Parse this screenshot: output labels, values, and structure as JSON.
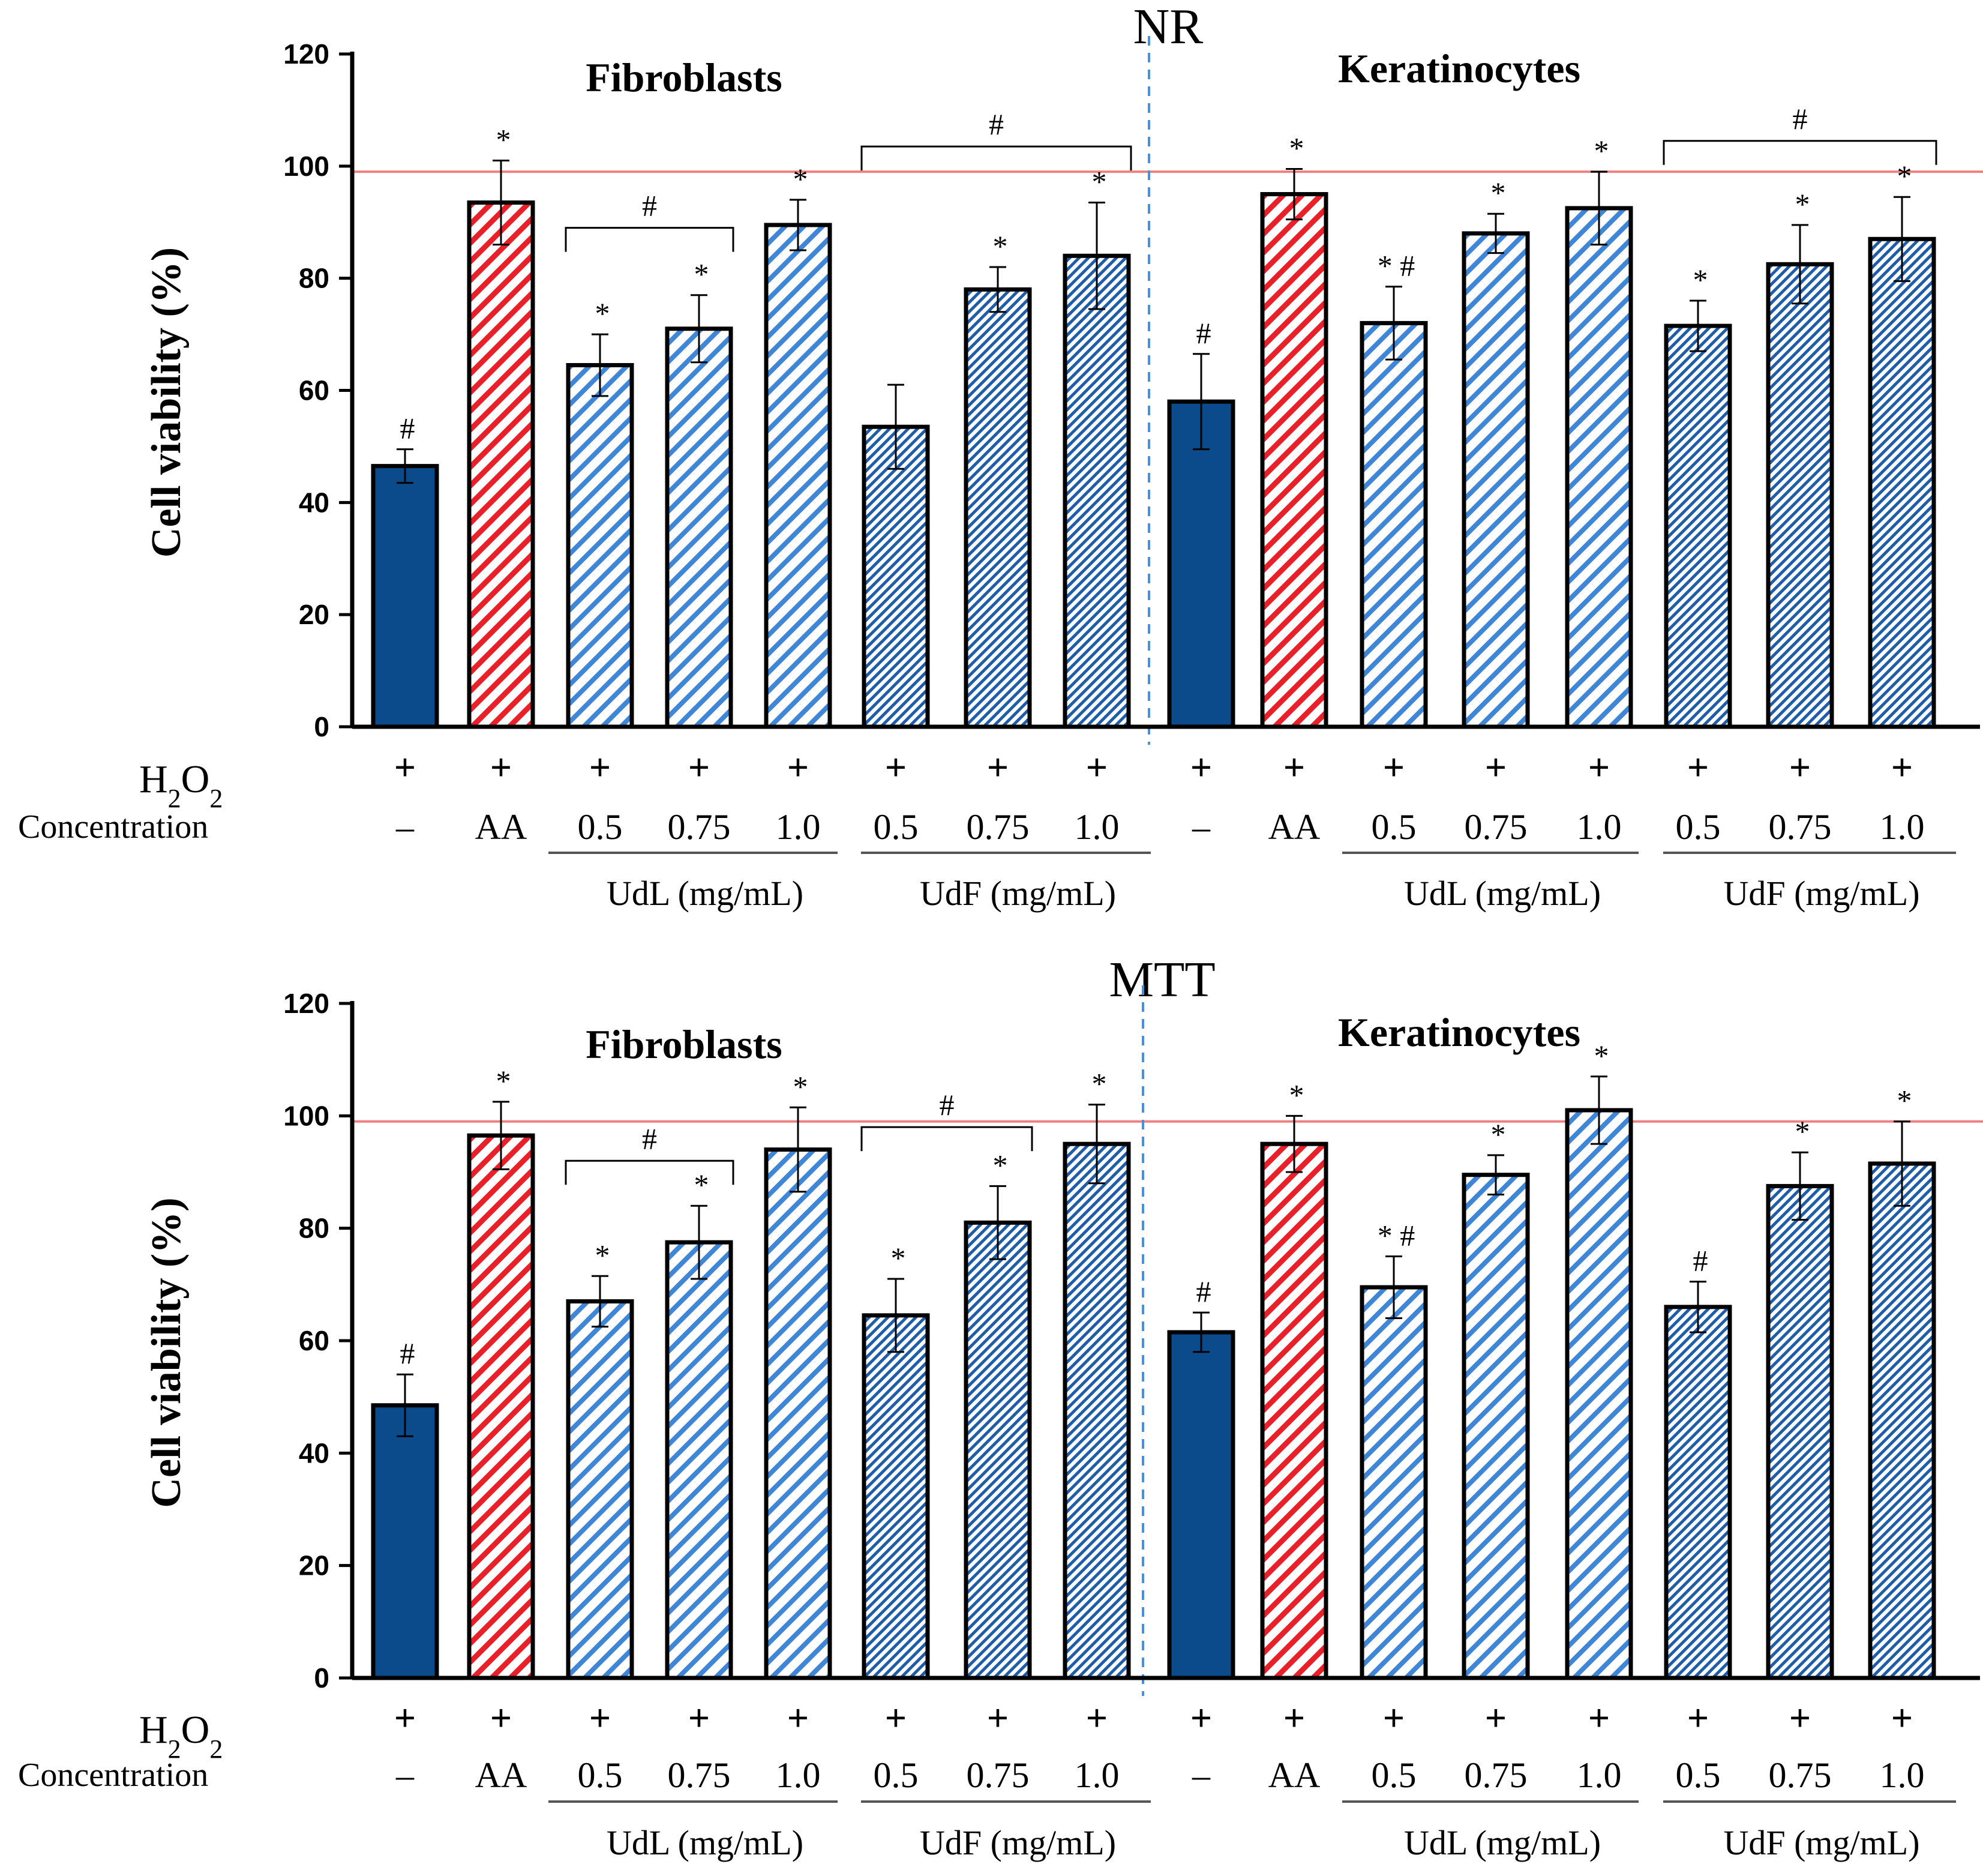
{
  "colors": {
    "solid": "#0b4a8b",
    "red": "#e8202a",
    "blue": "#3f86d6",
    "dense": "#1f5da8",
    "reference_line": "#f08080",
    "divider": "#4a90d9"
  },
  "labels": {
    "h2o2": "H2O2",
    "h2o2_main": "H",
    "h2o2_sub1": "2",
    "h2o2_mid": "O",
    "h2o2_sub2": "2",
    "concentration": "Concentration",
    "plus": "+",
    "udl_unit": "UdL (mg/mL)",
    "udf_unit": "UdF (mg/mL)"
  },
  "chart_data": [
    {
      "type": "bar",
      "title": "NR",
      "ylabel": "Cell viability (%)",
      "ylim": [
        0,
        120
      ],
      "yticks": [
        "0",
        "20",
        "40",
        "60",
        "80",
        "100",
        "120"
      ],
      "reference_line": 99,
      "groups": [
        {
          "name": "Fibroblasts",
          "categories": [
            "–",
            "AA",
            "0.5",
            "0.75",
            "1.0",
            "0.5",
            "0.75",
            "1.0"
          ],
          "values": [
            46.5,
            93.5,
            64.5,
            71,
            89.5,
            53.5,
            78,
            84
          ],
          "errors": [
            3,
            7.5,
            5.5,
            6,
            4.5,
            7.5,
            4,
            9.5
          ],
          "styles": [
            "solid",
            "red",
            "blue",
            "blue",
            "blue",
            "dense",
            "dense",
            "dense"
          ],
          "annotations": [
            "#",
            "*",
            "*",
            "*",
            "*",
            "",
            "*",
            "*"
          ],
          "brackets": [
            {
              "from": 2,
              "to": 3,
              "label": "#",
              "height": 89
            },
            {
              "from": 5,
              "to": 7,
              "label": "#",
              "height": 103.5
            }
          ]
        },
        {
          "name": "Keratinocytes",
          "categories": [
            "–",
            "AA",
            "0.5",
            "0.75",
            "1.0",
            "0.5",
            "0.75",
            "1.0"
          ],
          "values": [
            58,
            95,
            72,
            88,
            92.5,
            71.5,
            82.5,
            87
          ],
          "errors": [
            8.5,
            4.5,
            6.5,
            3.5,
            6.5,
            4.5,
            7,
            7.5
          ],
          "styles": [
            "solid",
            "red",
            "blue",
            "blue",
            "blue",
            "dense",
            "dense",
            "dense"
          ],
          "annotations": [
            "#",
            "*",
            "* #",
            "*",
            "*",
            "*",
            "*",
            "*"
          ],
          "brackets": [
            {
              "from": 5,
              "to": 7,
              "label": "#",
              "height": 104.5
            }
          ]
        }
      ]
    },
    {
      "type": "bar",
      "title": "MTT",
      "ylabel": "Cell viability (%)",
      "ylim": [
        0,
        120
      ],
      "yticks": [
        "0",
        "20",
        "40",
        "60",
        "80",
        "100",
        "120"
      ],
      "reference_line": 99,
      "groups": [
        {
          "name": "Fibroblasts",
          "categories": [
            "–",
            "AA",
            "0.5",
            "0.75",
            "1.0",
            "0.5",
            "0.75",
            "1.0"
          ],
          "values": [
            48.5,
            96.5,
            67,
            77.5,
            94,
            64.5,
            81,
            95
          ],
          "errors": [
            5.5,
            6,
            4.5,
            6.5,
            7.5,
            6.5,
            6.5,
            7
          ],
          "styles": [
            "solid",
            "red",
            "blue",
            "blue",
            "blue",
            "dense",
            "dense",
            "dense"
          ],
          "annotations": [
            "#",
            "*",
            "*",
            "*",
            "*",
            "*",
            "*",
            "*"
          ],
          "brackets": [
            {
              "from": 2,
              "to": 3,
              "label": "#",
              "height": 92
            },
            {
              "from": 5,
              "to": 6,
              "label": "#",
              "height": 98
            }
          ]
        },
        {
          "name": "Keratinocytes",
          "categories": [
            "–",
            "AA",
            "0.5",
            "0.75",
            "1.0",
            "0.5",
            "0.75",
            "1.0"
          ],
          "values": [
            61.5,
            95,
            69.5,
            89.5,
            101,
            66,
            87.5,
            91.5
          ],
          "errors": [
            3.5,
            5,
            5.5,
            3.5,
            6,
            4.5,
            6,
            7.5
          ],
          "styles": [
            "solid",
            "red",
            "blue",
            "blue",
            "blue",
            "dense",
            "dense",
            "dense"
          ],
          "annotations": [
            "#",
            "*",
            "* #",
            "*",
            "*",
            "#",
            "*",
            "*"
          ],
          "brackets": []
        }
      ]
    }
  ]
}
